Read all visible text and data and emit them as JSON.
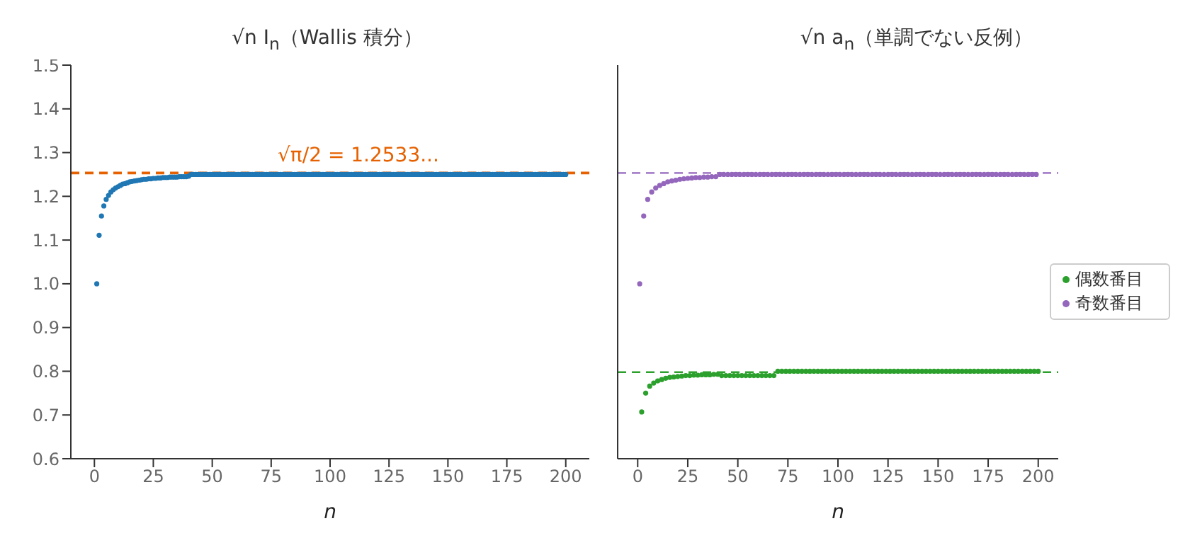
{
  "chart_data": [
    {
      "type": "scatter",
      "title": "√n I$_{n}$（Wallis 積分）",
      "xlabel": "n",
      "xlim": [
        -10,
        210
      ],
      "xticks": [
        0,
        25,
        50,
        75,
        100,
        125,
        150,
        175,
        200
      ],
      "ylim": [
        0.6,
        1.5
      ],
      "yticks": [
        0.6,
        0.7,
        0.8,
        0.9,
        {
          "value": 1,
          "label": "1.0"
        },
        1.1,
        1.2,
        1.3,
        1.4,
        1.5
      ],
      "grid": false,
      "legend": false,
      "marker": "circle",
      "series": [
        {
          "color": "#1f77b4",
          "x": [
            1,
            2,
            3,
            4,
            5,
            6,
            7,
            8,
            9,
            10,
            11,
            12,
            13,
            14,
            15,
            16,
            17,
            18,
            19,
            20,
            21,
            22,
            23,
            24,
            25,
            26,
            27,
            28,
            29,
            30,
            31,
            32,
            33,
            34,
            35,
            36,
            37,
            38,
            39,
            40,
            41,
            42,
            43,
            44,
            45,
            46,
            47,
            48,
            49,
            50,
            51,
            52,
            53,
            54,
            55,
            56,
            57,
            58,
            59,
            60,
            61,
            62,
            63,
            64,
            65,
            66,
            67,
            68,
            69,
            70,
            71,
            72,
            73,
            74,
            75,
            76,
            77,
            78,
            79,
            80,
            81,
            82,
            83,
            84,
            85,
            86,
            87,
            88,
            89,
            90,
            91,
            92,
            93,
            94,
            95,
            96,
            97,
            98,
            99,
            100,
            101,
            102,
            103,
            104,
            105,
            106,
            107,
            108,
            109,
            110,
            111,
            112,
            113,
            114,
            115,
            116,
            117,
            118,
            119,
            120,
            121,
            122,
            123,
            124,
            125,
            126,
            127,
            128,
            129,
            130,
            131,
            132,
            133,
            134,
            135,
            136,
            137,
            138,
            139,
            140,
            141,
            142,
            143,
            144,
            145,
            146,
            147,
            148,
            149,
            150,
            151,
            152,
            153,
            154,
            155,
            156,
            157,
            158,
            159,
            160,
            161,
            162,
            163,
            164,
            165,
            166,
            167,
            168,
            169,
            170,
            171,
            172,
            173,
            174,
            175,
            176,
            177,
            178,
            179,
            180,
            181,
            182,
            183,
            184,
            185,
            186,
            187,
            188,
            189,
            190,
            191,
            192,
            193,
            194,
            195,
            196,
            197,
            198,
            199,
            200
          ],
          "values": [
            1.0,
            1.111,
            1.155,
            1.178,
            1.193,
            1.202,
            1.21,
            1.215,
            1.219,
            1.222,
            1.225,
            1.228,
            1.229,
            1.231,
            1.233,
            1.234,
            1.235,
            1.236,
            1.237,
            1.238,
            1.239,
            1.239,
            1.24,
            1.24,
            1.241,
            1.241,
            1.242,
            1.242,
            1.243,
            1.243,
            1.243,
            1.244,
            1.244,
            1.244,
            1.244,
            1.245,
            1.245,
            1.245,
            1.245,
            1.246,
            1.25,
            1.25,
            1.25,
            1.25,
            1.25,
            1.25,
            1.25,
            1.25,
            1.25,
            1.25,
            1.25,
            1.25,
            1.25,
            1.25,
            1.25,
            1.25,
            1.25,
            1.25,
            1.25,
            1.25,
            1.25,
            1.25,
            1.25,
            1.25,
            1.25,
            1.25,
            1.25,
            1.25,
            1.25,
            1.25,
            1.25,
            1.25,
            1.25,
            1.25,
            1.25,
            1.25,
            1.25,
            1.25,
            1.25,
            1.25,
            1.25,
            1.25,
            1.25,
            1.25,
            1.25,
            1.25,
            1.25,
            1.25,
            1.25,
            1.25,
            1.25,
            1.25,
            1.25,
            1.25,
            1.25,
            1.25,
            1.25,
            1.25,
            1.25,
            1.25,
            1.25,
            1.25,
            1.25,
            1.25,
            1.25,
            1.25,
            1.25,
            1.25,
            1.25,
            1.25,
            1.25,
            1.25,
            1.25,
            1.25,
            1.25,
            1.25,
            1.25,
            1.25,
            1.25,
            1.25,
            1.25,
            1.25,
            1.25,
            1.25,
            1.25,
            1.25,
            1.25,
            1.25,
            1.25,
            1.25,
            1.25,
            1.25,
            1.25,
            1.25,
            1.25,
            1.25,
            1.25,
            1.25,
            1.25,
            1.25,
            1.25,
            1.25,
            1.25,
            1.25,
            1.25,
            1.25,
            1.25,
            1.25,
            1.25,
            1.25,
            1.25,
            1.25,
            1.25,
            1.25,
            1.25,
            1.25,
            1.25,
            1.25,
            1.25,
            1.25,
            1.25,
            1.25,
            1.25,
            1.25,
            1.25,
            1.25,
            1.25,
            1.25,
            1.25,
            1.25,
            1.25,
            1.25,
            1.25,
            1.25,
            1.25,
            1.25,
            1.25,
            1.25,
            1.25,
            1.25,
            1.25,
            1.25,
            1.25,
            1.25,
            1.25,
            1.25,
            1.25,
            1.25,
            1.25,
            1.25,
            1.25,
            1.25,
            1.25,
            1.25,
            1.25,
            1.25,
            1.25,
            1.25,
            1.25,
            1.25
          ]
        }
      ],
      "ref_lines": [
        {
          "axis": "y",
          "value": 1.2533,
          "label": "√π/2 = 1.2533...",
          "color": "#e66101",
          "line_style": "dashed"
        }
      ]
    },
    {
      "type": "scatter",
      "title": "√n a$_{n}$（単調でない反例）",
      "xlabel": "n",
      "xlim": [
        -10,
        210
      ],
      "xticks": [
        0,
        25,
        50,
        75,
        100,
        125,
        150,
        175,
        200
      ],
      "ylim": [
        0.6,
        1.5
      ],
      "yticks": [
        0.6,
        0.7,
        0.8,
        0.9,
        1,
        1.1,
        1.2,
        1.3,
        1.4,
        1.5
      ],
      "tick_labels": "x",
      "grid": false,
      "legend": "right",
      "marker": "circle",
      "series": [
        {
          "name": "偶数番目",
          "color": "#2ca02c",
          "x": [
            2,
            4,
            6,
            8,
            10,
            12,
            14,
            16,
            18,
            20,
            22,
            24,
            26,
            28,
            30,
            32,
            34,
            36,
            38,
            40,
            42,
            44,
            46,
            48,
            50,
            52,
            54,
            56,
            58,
            60,
            62,
            64,
            66,
            68,
            70,
            72,
            74,
            76,
            78,
            80,
            82,
            84,
            86,
            88,
            90,
            92,
            94,
            96,
            98,
            100,
            102,
            104,
            106,
            108,
            110,
            112,
            114,
            116,
            118,
            120,
            122,
            124,
            126,
            128,
            130,
            132,
            134,
            136,
            138,
            140,
            142,
            144,
            146,
            148,
            150,
            152,
            154,
            156,
            158,
            160,
            162,
            164,
            166,
            168,
            170,
            172,
            174,
            176,
            178,
            180,
            182,
            184,
            186,
            188,
            190,
            192,
            194,
            196,
            198,
            200
          ],
          "values": [
            0.707,
            0.75,
            0.766,
            0.773,
            0.778,
            0.781,
            0.784,
            0.786,
            0.787,
            0.788,
            0.789,
            0.79,
            0.79,
            0.791,
            0.791,
            0.792,
            0.792,
            0.792,
            0.793,
            0.793,
            0.79,
            0.79,
            0.79,
            0.79,
            0.79,
            0.79,
            0.79,
            0.79,
            0.79,
            0.79,
            0.79,
            0.79,
            0.79,
            0.79,
            0.8,
            0.8,
            0.8,
            0.8,
            0.8,
            0.8,
            0.8,
            0.8,
            0.8,
            0.8,
            0.8,
            0.8,
            0.8,
            0.8,
            0.8,
            0.8,
            0.8,
            0.8,
            0.8,
            0.8,
            0.8,
            0.8,
            0.8,
            0.8,
            0.8,
            0.8,
            0.8,
            0.8,
            0.8,
            0.8,
            0.8,
            0.8,
            0.8,
            0.8,
            0.8,
            0.8,
            0.8,
            0.8,
            0.8,
            0.8,
            0.8,
            0.8,
            0.8,
            0.8,
            0.8,
            0.8,
            0.8,
            0.8,
            0.8,
            0.8,
            0.8,
            0.8,
            0.8,
            0.8,
            0.8,
            0.8,
            0.8,
            0.8,
            0.8,
            0.8,
            0.8,
            0.8,
            0.8,
            0.8,
            0.8,
            0.8
          ]
        },
        {
          "name": "奇数番目",
          "color": "#9467bd",
          "x": [
            1,
            3,
            5,
            7,
            9,
            11,
            13,
            15,
            17,
            19,
            21,
            23,
            25,
            27,
            29,
            31,
            33,
            35,
            37,
            39,
            41,
            43,
            45,
            47,
            49,
            51,
            53,
            55,
            57,
            59,
            61,
            63,
            65,
            67,
            69,
            71,
            73,
            75,
            77,
            79,
            81,
            83,
            85,
            87,
            89,
            91,
            93,
            95,
            97,
            99,
            101,
            103,
            105,
            107,
            109,
            111,
            113,
            115,
            117,
            119,
            121,
            123,
            125,
            127,
            129,
            131,
            133,
            135,
            137,
            139,
            141,
            143,
            145,
            147,
            149,
            151,
            153,
            155,
            157,
            159,
            161,
            163,
            165,
            167,
            169,
            171,
            173,
            175,
            177,
            179,
            181,
            183,
            185,
            187,
            189,
            191,
            193,
            195,
            197,
            199
          ],
          "values": [
            1.0,
            1.155,
            1.193,
            1.21,
            1.219,
            1.225,
            1.229,
            1.233,
            1.235,
            1.237,
            1.239,
            1.24,
            1.241,
            1.242,
            1.243,
            1.243,
            1.244,
            1.244,
            1.245,
            1.245,
            1.25,
            1.25,
            1.25,
            1.25,
            1.25,
            1.25,
            1.25,
            1.25,
            1.25,
            1.25,
            1.25,
            1.25,
            1.25,
            1.25,
            1.25,
            1.25,
            1.25,
            1.25,
            1.25,
            1.25,
            1.25,
            1.25,
            1.25,
            1.25,
            1.25,
            1.25,
            1.25,
            1.25,
            1.25,
            1.25,
            1.25,
            1.25,
            1.25,
            1.25,
            1.25,
            1.25,
            1.25,
            1.25,
            1.25,
            1.25,
            1.25,
            1.25,
            1.25,
            1.25,
            1.25,
            1.25,
            1.25,
            1.25,
            1.25,
            1.25,
            1.25,
            1.25,
            1.25,
            1.25,
            1.25,
            1.25,
            1.25,
            1.25,
            1.25,
            1.25,
            1.25,
            1.25,
            1.25,
            1.25,
            1.25,
            1.25,
            1.25,
            1.25,
            1.25,
            1.25,
            1.25,
            1.25,
            1.25,
            1.25,
            1.25,
            1.25,
            1.25,
            1.25,
            1.25,
            1.25
          ]
        }
      ],
      "ref_lines": [
        {
          "axis": "y",
          "value": 1.2533,
          "color": "#9467bd",
          "line_style": "dashed"
        },
        {
          "axis": "y",
          "value": 0.798,
          "color": "#2ca02c",
          "line_style": "dashed"
        }
      ]
    }
  ]
}
